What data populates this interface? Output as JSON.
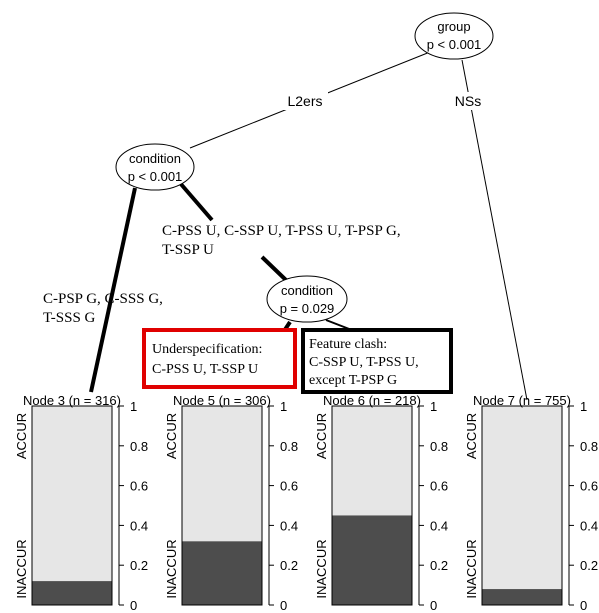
{
  "tree": {
    "root": {
      "label": "group",
      "p": "p < 0.001"
    },
    "root_edges": {
      "left": "L2ers",
      "right": "NSs"
    },
    "node2": {
      "label": "condition",
      "p": "p < 0.001"
    },
    "node2_edges": {
      "left_line1": "C-PSP G, C-SSS G,",
      "left_line2": "T-SSS G",
      "right_line1": "C-PSS U, C-SSP U, T-PSS U, T-PSP G,",
      "right_line2": "T-SSP U"
    },
    "node4": {
      "label": "condition",
      "p": "p = 0.029"
    }
  },
  "annotations": {
    "underspec": {
      "line1": "Underspecification:",
      "line2": "C-PSS U, T-SSP U",
      "color": "#e00000"
    },
    "clash": {
      "line1": "Feature clash:",
      "line2": "C-SSP U, T-PSS U,",
      "line3": "except T-PSP G",
      "color": "#000000"
    }
  },
  "axis": {
    "top_label": "ACCUR",
    "bottom_label": "INACCUR"
  },
  "colors": {
    "accur": "#e6e6e6",
    "inaccur": "#4d4d4d"
  },
  "chart_data": {
    "type": "bar",
    "stacked": true,
    "categories": [
      "Node 3 (n = 316)",
      "Node 5 (n = 306)",
      "Node 6 (n = 218)",
      "Node 7 (n = 755)"
    ],
    "series": [
      {
        "name": "INACCUR",
        "values": [
          0.12,
          0.32,
          0.45,
          0.08
        ]
      },
      {
        "name": "ACCUR",
        "values": [
          0.88,
          0.68,
          0.55,
          0.92
        ]
      }
    ],
    "ylim": [
      0,
      1
    ],
    "yticks": [
      "0",
      "0.2",
      "0.4",
      "0.6",
      "0.8",
      "1"
    ]
  }
}
